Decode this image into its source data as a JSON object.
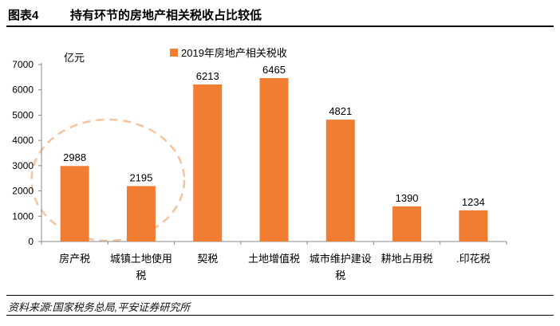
{
  "figure": {
    "number": "图表4",
    "title": "持有环节的房地产相关税收占比较低",
    "unit": "亿元",
    "source": "资料来源:国家税务总局,平安证券研究所"
  },
  "chart_data": {
    "type": "bar",
    "categories": [
      [
        "房产税"
      ],
      [
        "城镇土地使用",
        "税"
      ],
      [
        "契税"
      ],
      [
        "土地增值税"
      ],
      [
        "城市维护建设",
        "税"
      ],
      [
        "耕地占用税"
      ],
      [
        ".印花税"
      ]
    ],
    "series": [
      {
        "name": "2019年房地产相关税收",
        "values": [
          2988,
          2195,
          6213,
          6465,
          4821,
          1390,
          1234
        ],
        "color": "#f07d32"
      }
    ],
    "ylim": [
      0,
      7000
    ],
    "yticks": [
      0,
      1000,
      2000,
      3000,
      4000,
      5000,
      6000,
      7000
    ],
    "data_labels": true,
    "legend_position": "top-center",
    "highlight_ellipse": {
      "around_categories": [
        0,
        1
      ],
      "style": "dashed",
      "color": "#f5c39c"
    }
  }
}
